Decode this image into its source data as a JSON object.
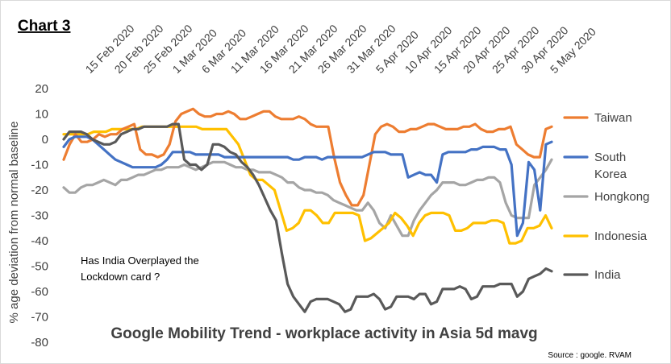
{
  "heading": "Chart 3",
  "chart_data": {
    "type": "line",
    "title": "Google Mobility Trend - workplace activity in Asia 5d mavg",
    "ylabel": "% age deviation from normal baseline",
    "xlabel": "",
    "ylim": [
      -80,
      20
    ],
    "yticks": [
      20,
      10,
      0,
      -10,
      -20,
      -30,
      -40,
      -50,
      -60,
      -70,
      -80
    ],
    "x_start": "2020-02-11",
    "x_end": "2020-05-05",
    "xtick_labels": [
      "15 Feb 2020",
      "20 Feb 2020",
      "25 Feb 2020",
      "1 Mar 2020",
      "6 Mar 2020",
      "11 Mar 2020",
      "16 Mar 2020",
      "21 Mar 2020",
      "26 Mar 2020",
      "31 Mar 2020",
      "5 Apr 2020",
      "10 Apr 2020",
      "15 Apr 2020",
      "20 Apr 2020",
      "25 Apr 2020",
      "30 Apr 2020",
      "5 May 2020"
    ],
    "grid": false,
    "legend_placement": "right",
    "annotation": "Has India Overplayed the Lockdown card  ?",
    "annotation_lines": [
      "Has India Overplayed the",
      "Lockdown card  ?"
    ],
    "source": "Source : google. RVAM",
    "series": [
      {
        "name": "Taiwan",
        "legend_lines": [
          "Taiwan"
        ],
        "color": "#ED7D31",
        "values": [
          -8,
          -2,
          2,
          -1,
          -1,
          0,
          2,
          1,
          2,
          2,
          4,
          5,
          6,
          -4,
          -6,
          -6,
          -7,
          -6,
          -2,
          7,
          10,
          11,
          12,
          10,
          9,
          9,
          10,
          10,
          11,
          10,
          8,
          8,
          9,
          10,
          11,
          11,
          9,
          8,
          8,
          8,
          9,
          8,
          6,
          5,
          5,
          5,
          -7,
          -17,
          -22,
          -26,
          -26,
          -22,
          -10,
          2,
          5,
          6,
          5,
          3,
          3,
          4,
          4,
          5,
          6,
          6,
          5,
          4,
          4,
          4,
          5,
          5,
          6,
          4,
          3,
          3,
          4,
          4,
          5,
          -2,
          -4,
          -6,
          -7,
          -7,
          4,
          5
        ]
      },
      {
        "name": "South Korea",
        "legend_lines": [
          "South",
          "Korea"
        ],
        "color": "#4472C4",
        "values": [
          -3,
          0,
          1,
          1,
          1,
          0,
          -2,
          -4,
          -6,
          -8,
          -9,
          -10,
          -11,
          -11,
          -11,
          -11,
          -11,
          -10,
          -8,
          -5,
          -5,
          -5,
          -5,
          -6,
          -6,
          -6,
          -6,
          -6,
          -7,
          -7,
          -7,
          -7,
          -7,
          -7,
          -7,
          -7,
          -7,
          -7,
          -7,
          -7,
          -8,
          -8,
          -7,
          -7,
          -7,
          -8,
          -7,
          -7,
          -7,
          -7,
          -7,
          -7,
          -7,
          -6,
          -5,
          -5,
          -5,
          -6,
          -6,
          -6,
          -15,
          -14,
          -13,
          -14,
          -14,
          -17,
          -6,
          -5,
          -5,
          -5,
          -5,
          -4,
          -4,
          -3,
          -3,
          -3,
          -4,
          -4,
          -10,
          -38,
          -33,
          -9,
          -12,
          -28,
          -2,
          -1
        ]
      },
      {
        "name": "Hongkong",
        "legend_lines": [
          "Hongkong"
        ],
        "color": "#A5A5A5",
        "values": [
          -19,
          -21,
          -21,
          -19,
          -18,
          -18,
          -17,
          -16,
          -17,
          -18,
          -16,
          -16,
          -15,
          -14,
          -14,
          -13,
          -12,
          -12,
          -11,
          -11,
          -11,
          -10,
          -11,
          -12,
          -11,
          -10,
          -9,
          -9,
          -9,
          -10,
          -11,
          -11,
          -12,
          -12,
          -13,
          -13,
          -13,
          -14,
          -15,
          -17,
          -17,
          -19,
          -20,
          -20,
          -21,
          -21,
          -22,
          -24,
          -25,
          -26,
          -27,
          -28,
          -28,
          -25,
          -28,
          -33,
          -35,
          -30,
          -34,
          -38,
          -38,
          -32,
          -28,
          -25,
          -22,
          -20,
          -17,
          -17,
          -17,
          -18,
          -18,
          -17,
          -16,
          -16,
          -15,
          -15,
          -17,
          -25,
          -30,
          -31,
          -31,
          -31,
          -18,
          -15,
          -12,
          -8
        ]
      },
      {
        "name": "Indonesia",
        "legend_lines": [
          "Indonesia"
        ],
        "color": "#FFC000",
        "values": [
          2,
          2,
          2,
          2,
          2,
          3,
          3,
          3,
          4,
          4,
          4,
          4,
          4,
          5,
          5,
          5,
          5,
          5,
          5,
          5,
          5,
          5,
          5,
          4,
          4,
          4,
          4,
          4,
          1,
          -2,
          -8,
          -14,
          -16,
          -16,
          -18,
          -20,
          -28,
          -36,
          -35,
          -33,
          -28,
          -28,
          -30,
          -33,
          -33,
          -29,
          -29,
          -29,
          -29,
          -30,
          -40,
          -39,
          -37,
          -35,
          -33,
          -29,
          -31,
          -34,
          -38,
          -33,
          -30,
          -29,
          -29,
          -29,
          -30,
          -36,
          -36,
          -35,
          -33,
          -33,
          -33,
          -32,
          -32,
          -33,
          -41,
          -41,
          -40,
          -35,
          -35,
          -34,
          -30,
          -35
        ]
      },
      {
        "name": "India",
        "legend_lines": [
          "India"
        ],
        "color": "#595959",
        "values": [
          0,
          3,
          3,
          3,
          2,
          0,
          -1,
          -2,
          -2,
          -1,
          2,
          3,
          4,
          4,
          5,
          5,
          5,
          5,
          5,
          6,
          6,
          -8,
          -10,
          -10,
          -12,
          -10,
          -2,
          -2,
          -3,
          -5,
          -6,
          -9,
          -11,
          -14,
          -18,
          -23,
          -28,
          -32,
          -45,
          -57,
          -62,
          -65,
          -68,
          -64,
          -63,
          -63,
          -63,
          -64,
          -65,
          -68,
          -67,
          -62,
          -62,
          -62,
          -61,
          -63,
          -67,
          -66,
          -62,
          -62,
          -62,
          -63,
          -61,
          -61,
          -65,
          -64,
          -59,
          -59,
          -59,
          -58,
          -59,
          -63,
          -62,
          -58,
          -58,
          -58,
          -57,
          -57,
          -57,
          -62,
          -60,
          -55,
          -54,
          -53,
          -51,
          -52
        ]
      }
    ]
  }
}
